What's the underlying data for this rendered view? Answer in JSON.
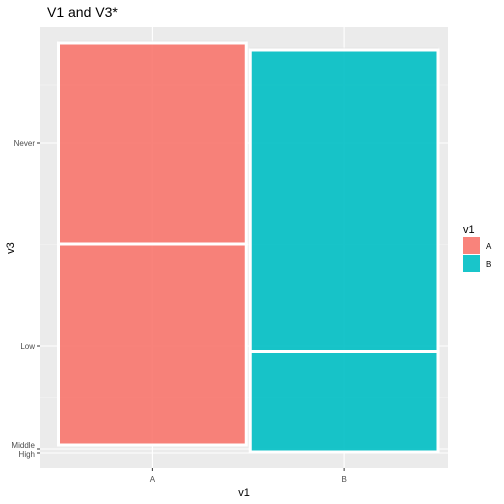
{
  "chart_data": {
    "type": "mosaic",
    "title": "V1 and V3*",
    "xlabel": "v1",
    "ylabel": "v3",
    "categories": [
      "A",
      "B"
    ],
    "y_categories": [
      "High",
      "Middle",
      "Low",
      "Never"
    ],
    "y_tick_labels": [
      "Never",
      "Low",
      "Middle",
      "High"
    ],
    "x_tick_labels": [
      "A",
      "B"
    ],
    "legend": {
      "title": "v1",
      "position": "right",
      "entries": [
        {
          "label": "A",
          "color": "#F8766D"
        },
        {
          "label": "B",
          "color": "#00BFC4"
        }
      ]
    },
    "series": [
      {
        "name": "A",
        "color": "#F8766D",
        "width_share": 0.5,
        "segments": [
          {
            "level": "High",
            "fraction": 0.0
          },
          {
            "level": "Middle",
            "fraction": 0.0
          },
          {
            "level": "Low",
            "fraction": 0.5
          },
          {
            "level": "Never",
            "fraction": 0.5
          }
        ]
      },
      {
        "name": "B",
        "color": "#00BFC4",
        "width_share": 0.5,
        "segments": [
          {
            "level": "High",
            "fraction": 0.0
          },
          {
            "level": "Middle",
            "fraction": 0.0
          },
          {
            "level": "Low",
            "fraction": 0.25
          },
          {
            "level": "Never",
            "fraction": 0.75
          }
        ]
      }
    ],
    "grid": true,
    "panel_background": "#EBEBEB"
  }
}
